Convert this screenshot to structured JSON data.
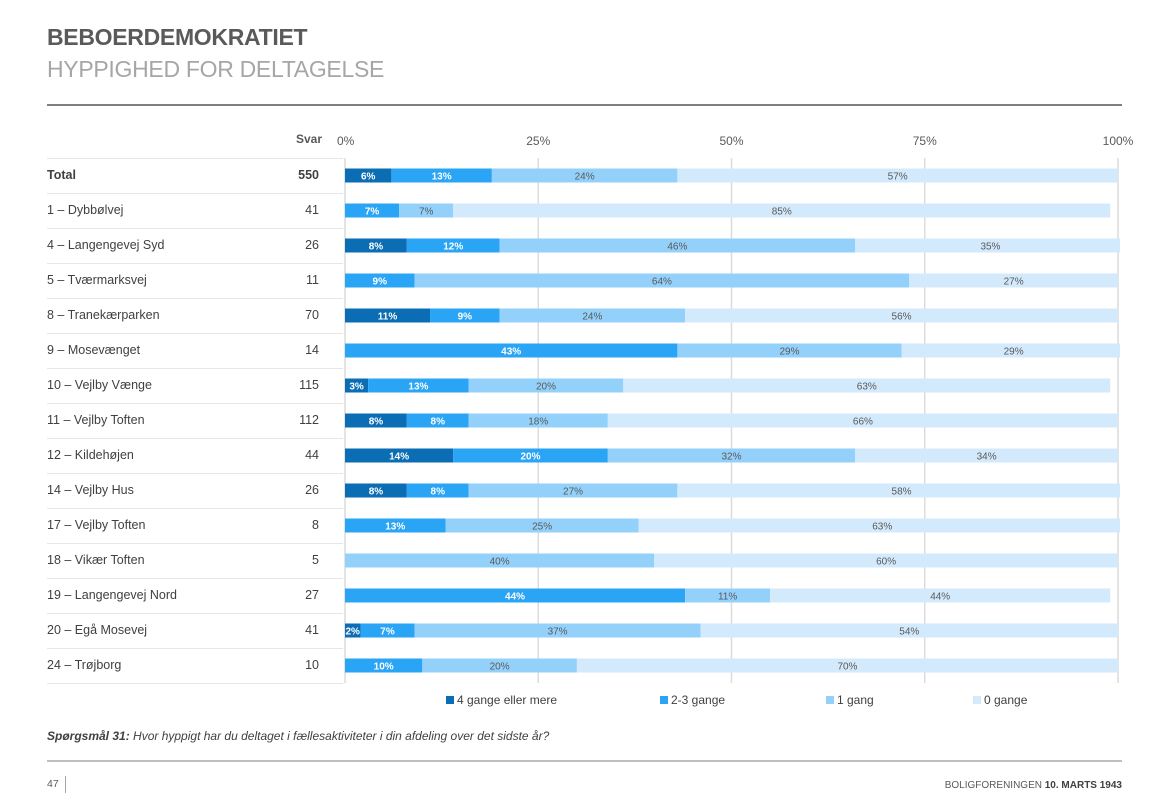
{
  "header": {
    "title": "BEBOERDEMOKRATIET",
    "subtitle": "HYPPIGHED FOR DELTAGELSE"
  },
  "table": {
    "count_header": "Svar"
  },
  "chart_data": {
    "type": "bar",
    "orientation": "horizontal",
    "stacked": true,
    "percent_stacked": true,
    "title": "Hyppighed for deltagelse",
    "xlabel": "",
    "ylabel": "",
    "xlim": [
      0,
      100
    ],
    "x_ticks": [
      "0%",
      "25%",
      "50%",
      "75%",
      "100%"
    ],
    "grid": true,
    "legend_position": "bottom",
    "categories": [
      "Total",
      "1 – Dybbølvej",
      "4 – Langengevej Syd",
      "5 – Tværmarksvej",
      "8 – Tranekærparken",
      "9 – Mosevænget",
      "10 – Vejlby Vænge",
      "11 – Vejlby Toften",
      "12 – Kildehøjen",
      "14 – Vejlby Hus",
      "17 – Vejlby Toften",
      "18 – Vikær Toften",
      "19 – Langengevej Nord",
      "20 – Egå Mosevej",
      "24 – Trøjborg"
    ],
    "counts": [
      550,
      41,
      26,
      11,
      70,
      14,
      115,
      112,
      44,
      26,
      8,
      5,
      27,
      41,
      10
    ],
    "series": [
      {
        "name": "4 gange eller mere",
        "color": "#0b6db4",
        "label_color": "#ffffff",
        "values": [
          6,
          0,
          8,
          0,
          11,
          0,
          3,
          8,
          14,
          8,
          0,
          0,
          0,
          2,
          0
        ]
      },
      {
        "name": "2-3 gange",
        "color": "#2aa5f5",
        "label_color": "#ffffff",
        "values": [
          13,
          7,
          12,
          9,
          9,
          43,
          13,
          8,
          20,
          8,
          13,
          0,
          44,
          7,
          10
        ]
      },
      {
        "name": "1 gang",
        "color": "#93d1fb",
        "label_color": "#595959",
        "values": [
          24,
          7,
          46,
          64,
          24,
          29,
          20,
          18,
          32,
          27,
          25,
          40,
          11,
          37,
          20
        ]
      },
      {
        "name": "0 gange",
        "color": "#d3eafc",
        "label_color": "#595959",
        "values": [
          57,
          85,
          35,
          27,
          56,
          29,
          63,
          66,
          34,
          58,
          63,
          60,
          44,
          54,
          70
        ]
      }
    ]
  },
  "legend": [
    {
      "label": "4 gange eller mere",
      "color": "#0b6db4"
    },
    {
      "label": "2-3 gange",
      "color": "#2aa5f5"
    },
    {
      "label": "1 gang",
      "color": "#93d1fb"
    },
    {
      "label": "0 gange",
      "color": "#d3eafc"
    }
  ],
  "question": {
    "label": "Spørgsmål 31:",
    "text": " Hvor hyppigt har du deltaget i fællesaktiviteter i din afdeling over det sidste år?"
  },
  "footer": {
    "page_number": "47",
    "org": "BOLIGFORENINGEN ",
    "date": "10. MARTS 1943"
  }
}
